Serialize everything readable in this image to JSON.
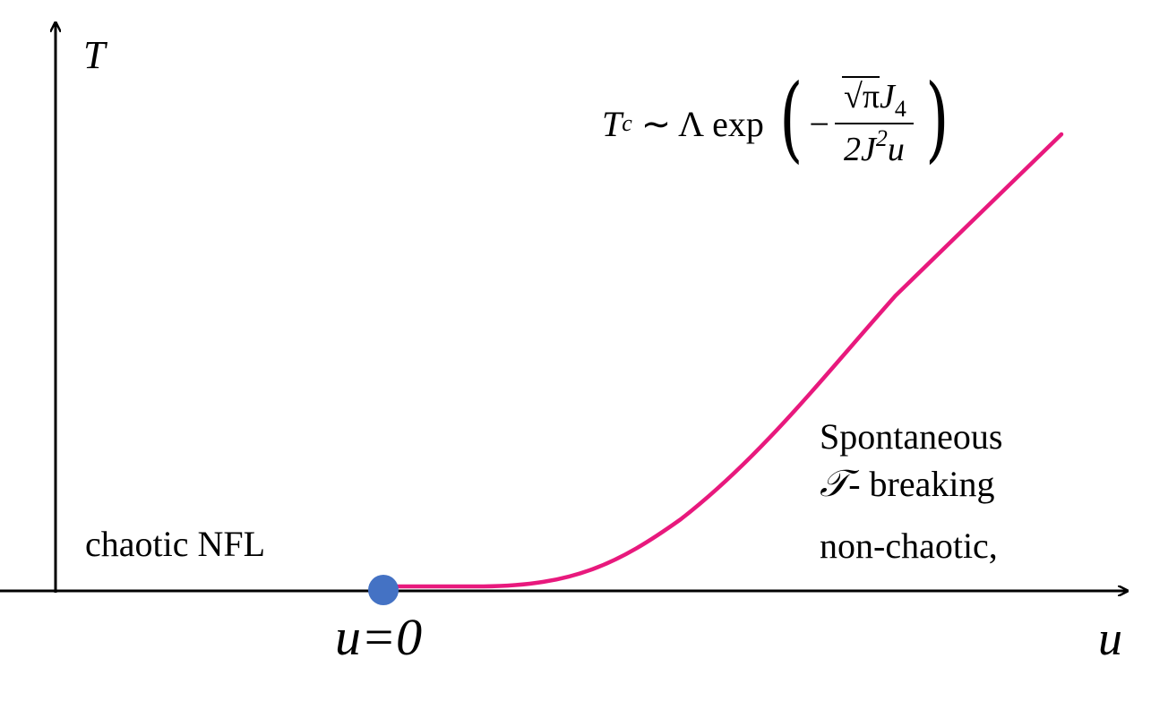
{
  "axes": {
    "y_label": "T",
    "x_label": "u"
  },
  "origin_label": "u=0",
  "regions": {
    "left": "chaotic NFL",
    "right_line1": "Spontaneous",
    "right_symbol": "𝒯",
    "right_line2": "- breaking",
    "right_line3": "non-chaotic,"
  },
  "formula": {
    "lhs": "T",
    "lhs_sub": "c",
    "relation": " ∼ Λ exp ",
    "open_paren": "(",
    "close_paren": ")",
    "minus": "−",
    "num_sqrt": "√π",
    "num_rest": "J",
    "num_sub": "4",
    "den_a": "2J",
    "den_sup": "2",
    "den_b": "u"
  },
  "colors": {
    "curve": "#e8197d",
    "critical_point": "#4472c4",
    "axis": "#000000"
  }
}
